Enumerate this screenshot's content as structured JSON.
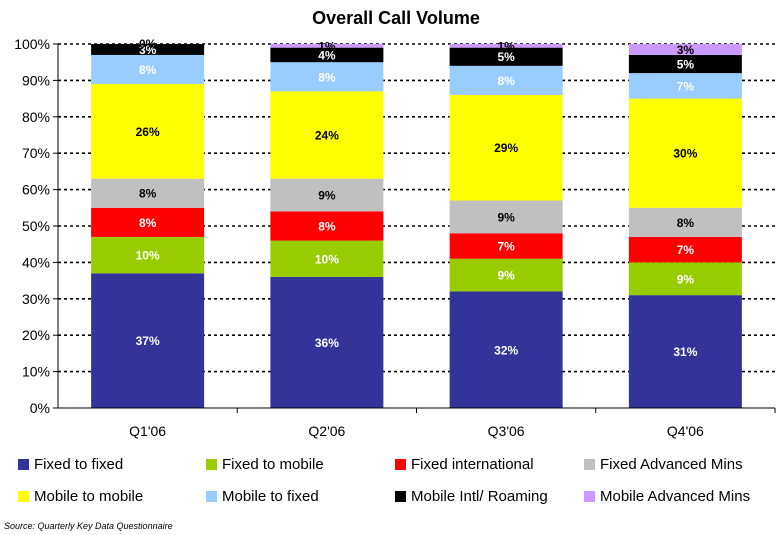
{
  "chart_data": {
    "type": "bar",
    "stacked": true,
    "title": "Overall Call Volume",
    "categories": [
      "Q1'06",
      "Q2'06",
      "Q3'06",
      "Q4'06"
    ],
    "ylim": [
      0,
      100
    ],
    "yticks": [
      "0%",
      "10%",
      "20%",
      "30%",
      "40%",
      "50%",
      "60%",
      "70%",
      "80%",
      "90%",
      "100%"
    ],
    "grid": true,
    "legend_position": "bottom",
    "series": [
      {
        "name": "Fixed to fixed",
        "color": "#333399",
        "label_color": "#ffffff",
        "values": [
          37,
          36,
          32,
          31
        ],
        "labels": [
          "37%",
          "36%",
          "32%",
          "31%"
        ]
      },
      {
        "name": "Fixed to mobile",
        "color": "#99cc00",
        "label_color": "#ffffff",
        "values": [
          10,
          10,
          9,
          9
        ],
        "labels": [
          "10%",
          "10%",
          "9%",
          "9%"
        ]
      },
      {
        "name": "Fixed international",
        "color": "#ff0000",
        "label_color": "#ffffff",
        "values": [
          8,
          8,
          7,
          7
        ],
        "labels": [
          "8%",
          "8%",
          "7%",
          "7%"
        ]
      },
      {
        "name": "Fixed Advanced Mins",
        "color": "#c0c0c0",
        "label_color": "#000000",
        "values": [
          8,
          9,
          9,
          8
        ],
        "labels": [
          "8%",
          "9%",
          "9%",
          "8%"
        ]
      },
      {
        "name": "Mobile to mobile",
        "color": "#ffff00",
        "label_color": "#000000",
        "values": [
          26,
          24,
          29,
          30
        ],
        "labels": [
          "26%",
          "24%",
          "29%",
          "30%"
        ]
      },
      {
        "name": "Mobile to fixed",
        "color": "#99ccff",
        "label_color": "#ffffff",
        "values": [
          8,
          8,
          8,
          7
        ],
        "labels": [
          "8%",
          "8%",
          "8%",
          "7%"
        ]
      },
      {
        "name": "Mobile Intl/ Roaming",
        "color": "#000000",
        "label_color": "#ffffff",
        "values": [
          3,
          4,
          5,
          5
        ],
        "labels": [
          "3%",
          "4%",
          "5%",
          "5%"
        ]
      },
      {
        "name": "Mobile Advanced Mins",
        "color": "#cc99ff",
        "label_color": "#000000",
        "values": [
          0,
          1,
          1,
          3
        ],
        "labels": [
          "0%",
          "1%",
          "1%",
          "3%"
        ]
      }
    ],
    "legend_order": [
      0,
      1,
      2,
      3,
      4,
      5,
      6,
      7
    ],
    "source": "Source:  Quarterly Key Data Questionnaire"
  }
}
